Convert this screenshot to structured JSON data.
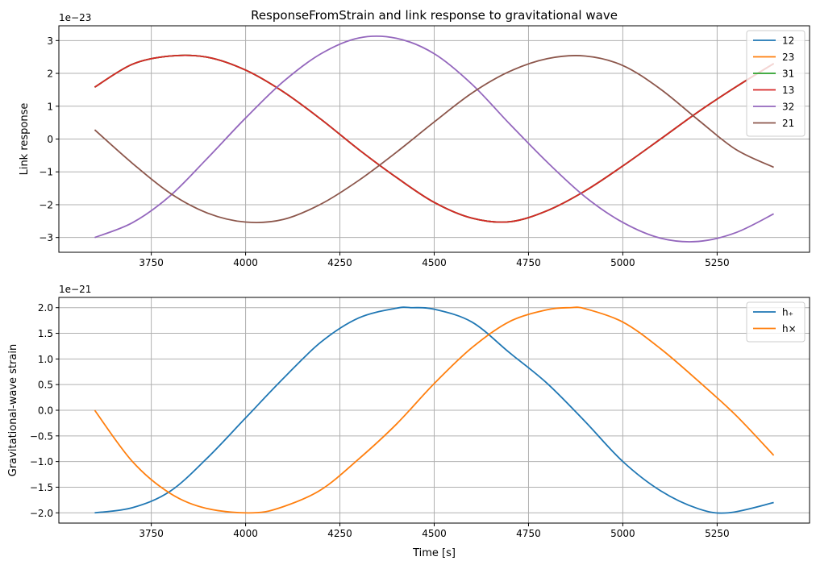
{
  "chart_data": [
    {
      "type": "line",
      "title": "ResponseFromStrain and link response to gravitational wave",
      "xlabel": "",
      "ylabel": "Link response",
      "offset_text": "1e−23",
      "scale": 1e-23,
      "xlim": [
        3505,
        5495
      ],
      "ylim": [
        -3.45,
        3.45
      ],
      "xticks": [
        3750,
        4000,
        4250,
        4500,
        4750,
        5000,
        5250
      ],
      "yticks": [
        -3,
        -2,
        -1,
        0,
        1,
        2,
        3
      ],
      "grid": true,
      "legend_placement": "top-right",
      "series": [
        {
          "name": "12",
          "color": "#1f77b4",
          "x": [
            3600,
            3700,
            3800,
            3900,
            4000,
            4100,
            4200,
            4300,
            4400,
            4500,
            4600,
            4700,
            4800,
            4900,
            5000,
            5100,
            5200,
            5300,
            5400
          ],
          "values": [
            1.58,
            2.28,
            2.53,
            2.49,
            2.1,
            1.44,
            0.6,
            -0.32,
            -1.17,
            -1.93,
            -2.41,
            -2.52,
            -2.18,
            -1.58,
            -0.82,
            0.0,
            0.83,
            1.59,
            2.3
          ]
        },
        {
          "name": "23",
          "color": "#ff7f0e",
          "x": [
            3600,
            3700,
            3800,
            3900,
            4000,
            4100,
            4200,
            4300,
            4400,
            4500,
            4600,
            4700,
            4800,
            4900,
            5000,
            5100,
            5200,
            5300,
            5400
          ],
          "values": [
            1.58,
            2.28,
            2.53,
            2.49,
            2.1,
            1.44,
            0.6,
            -0.32,
            -1.17,
            -1.93,
            -2.41,
            -2.52,
            -2.18,
            -1.58,
            -0.82,
            0.0,
            0.83,
            1.59,
            2.3
          ]
        },
        {
          "name": "31",
          "color": "#2ca02c",
          "x": [
            3600,
            3700,
            3800,
            3900,
            4000,
            4100,
            4200,
            4300,
            4400,
            4500,
            4600,
            4700,
            4800,
            4900,
            5000,
            5100,
            5200,
            5300,
            5400
          ],
          "values": [
            1.58,
            2.28,
            2.53,
            2.49,
            2.1,
            1.44,
            0.6,
            -0.32,
            -1.17,
            -1.93,
            -2.41,
            -2.52,
            -2.18,
            -1.58,
            -0.82,
            0.0,
            0.83,
            1.59,
            2.3
          ]
        },
        {
          "name": "13",
          "color": "#d62728",
          "x": [
            3600,
            3700,
            3800,
            3900,
            4000,
            4100,
            4200,
            4300,
            4400,
            4500,
            4600,
            4700,
            4800,
            4900,
            5000,
            5100,
            5200,
            5300,
            5400
          ],
          "values": [
            1.58,
            2.28,
            2.53,
            2.49,
            2.1,
            1.44,
            0.6,
            -0.32,
            -1.17,
            -1.93,
            -2.41,
            -2.52,
            -2.18,
            -1.58,
            -0.82,
            0.0,
            0.83,
            1.59,
            2.3
          ]
        },
        {
          "name": "32",
          "color": "#9467bd",
          "x": [
            3600,
            3700,
            3800,
            3900,
            4000,
            4100,
            4200,
            4300,
            4400,
            4500,
            4600,
            4700,
            4800,
            4900,
            5000,
            5100,
            5200,
            5300,
            5400
          ],
          "values": [
            -3.0,
            -2.55,
            -1.73,
            -0.57,
            0.64,
            1.75,
            2.6,
            3.08,
            3.07,
            2.6,
            1.67,
            0.46,
            -0.71,
            -1.76,
            -2.54,
            -3.02,
            -3.12,
            -2.85,
            -2.28
          ]
        },
        {
          "name": "21",
          "color": "#8c564b",
          "x": [
            3600,
            3700,
            3800,
            3900,
            4000,
            4100,
            4200,
            4300,
            4400,
            4500,
            4600,
            4700,
            4800,
            4900,
            5000,
            5100,
            5200,
            5300,
            5400
          ],
          "values": [
            0.28,
            -0.74,
            -1.65,
            -2.26,
            -2.53,
            -2.45,
            -1.98,
            -1.26,
            -0.4,
            0.52,
            1.4,
            2.06,
            2.45,
            2.53,
            2.24,
            1.52,
            0.58,
            -0.32,
            -0.86
          ]
        }
      ]
    },
    {
      "type": "line",
      "title": "",
      "xlabel": "Time [s]",
      "ylabel": "Gravitational-wave strain",
      "offset_text": "1e−21",
      "scale": 1e-21,
      "xlim": [
        3505,
        5495
      ],
      "ylim": [
        -2.2,
        2.2
      ],
      "xticks": [
        3750,
        4000,
        4250,
        4500,
        4750,
        5000,
        5250
      ],
      "yticks": [
        -2.0,
        -1.5,
        -1.0,
        -0.5,
        0.0,
        0.5,
        1.0,
        1.5,
        2.0
      ],
      "grid": true,
      "legend_placement": "top-right",
      "series": [
        {
          "name": "h₊",
          "color": "#1f77b4",
          "x": [
            3600,
            3700,
            3800,
            3900,
            4000,
            4100,
            4200,
            4300,
            4400,
            4440,
            4500,
            4600,
            4700,
            4800,
            4900,
            5000,
            5100,
            5200,
            5280,
            5400
          ],
          "values": [
            -2.0,
            -1.9,
            -1.58,
            -0.92,
            -0.15,
            0.62,
            1.33,
            1.8,
            1.99,
            2.0,
            1.97,
            1.72,
            1.12,
            0.52,
            -0.22,
            -1.0,
            -1.57,
            -1.92,
            -2.0,
            -1.8
          ]
        },
        {
          "name": "h×",
          "color": "#ff7f0e",
          "x": [
            3600,
            3700,
            3800,
            3900,
            4020,
            4100,
            4200,
            4300,
            4400,
            4500,
            4600,
            4700,
            4800,
            4860,
            4900,
            5000,
            5100,
            5200,
            5300,
            5400
          ],
          "values": [
            0.0,
            -1.0,
            -1.62,
            -1.92,
            -2.0,
            -1.88,
            -1.55,
            -0.95,
            -0.27,
            0.52,
            1.22,
            1.73,
            1.96,
            2.0,
            1.98,
            1.72,
            1.2,
            0.57,
            -0.1,
            -0.88
          ]
        }
      ]
    }
  ]
}
